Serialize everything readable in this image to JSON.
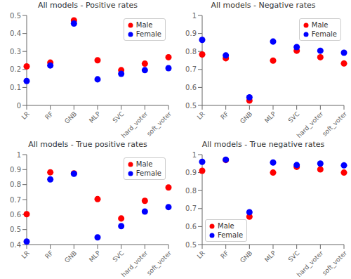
{
  "chart_data": [
    {
      "type": "scatter",
      "title": "All models - Positive rates",
      "categories": [
        "LR",
        "RF",
        "GNB",
        "MLP",
        "SVC",
        "hard_voter",
        "soft_voter"
      ],
      "series": [
        {
          "name": "Male",
          "color": "red",
          "values": [
            0.217,
            0.238,
            0.473,
            0.251,
            0.196,
            0.232,
            0.268
          ]
        },
        {
          "name": "Female",
          "color": "blue",
          "values": [
            0.136,
            0.222,
            0.455,
            0.145,
            0.176,
            0.196,
            0.207
          ]
        }
      ],
      "ylim": [
        0,
        0.5
      ],
      "yticks": [
        0,
        0.1,
        0.2,
        0.3,
        0.4,
        0.5
      ],
      "legend": "upper right",
      "grid": false,
      "marker": "circle"
    },
    {
      "type": "scatter",
      "title": "All models - Negative rates",
      "categories": [
        "LR",
        "RF",
        "GNB",
        "MLP",
        "SVC",
        "hard_voter",
        "soft_voter"
      ],
      "series": [
        {
          "name": "Male",
          "color": "red",
          "values": [
            0.783,
            0.762,
            0.527,
            0.749,
            0.804,
            0.768,
            0.733
          ]
        },
        {
          "name": "Female",
          "color": "blue",
          "values": [
            0.864,
            0.778,
            0.545,
            0.855,
            0.824,
            0.804,
            0.793
          ]
        }
      ],
      "ylim": [
        0.5,
        1
      ],
      "yticks": [
        0.5,
        0.6,
        0.7,
        0.8,
        0.9,
        1
      ],
      "legend": "upper right",
      "grid": false,
      "marker": "circle"
    },
    {
      "type": "scatter",
      "title": "All models - True positive rates",
      "categories": [
        "LR",
        "RF",
        "GNB",
        "MLP",
        "SVC",
        "hard_voter",
        "soft_voter"
      ],
      "series": [
        {
          "name": "Male",
          "color": "red",
          "values": [
            0.603,
            0.882,
            0.875,
            0.703,
            0.574,
            0.692,
            0.781
          ]
        },
        {
          "name": "Female",
          "color": "blue",
          "values": [
            0.42,
            0.835,
            0.872,
            0.448,
            0.523,
            0.62,
            0.65
          ]
        }
      ],
      "ylim": [
        0.4,
        1
      ],
      "yticks": [
        0.4,
        0.5,
        0.6,
        0.7,
        0.8,
        0.9,
        1
      ],
      "legend": "upper right",
      "grid": false,
      "marker": "circle"
    },
    {
      "type": "scatter",
      "title": "All models - True negative rates",
      "categories": [
        "LR",
        "RF",
        "GNB",
        "MLP",
        "SVC",
        "hard_voter",
        "soft_voter"
      ],
      "series": [
        {
          "name": "Male",
          "color": "red",
          "values": [
            0.91,
            0.97,
            0.655,
            0.9,
            0.932,
            0.918,
            0.9
          ]
        },
        {
          "name": "Female",
          "color": "blue",
          "values": [
            0.96,
            0.972,
            0.68,
            0.956,
            0.942,
            0.95,
            0.94
          ]
        }
      ],
      "ylim": [
        0.5,
        1
      ],
      "yticks": [
        0.5,
        0.6,
        0.7,
        0.8,
        0.9,
        1
      ],
      "legend": "lower left",
      "grid": false,
      "marker": "circle"
    }
  ]
}
